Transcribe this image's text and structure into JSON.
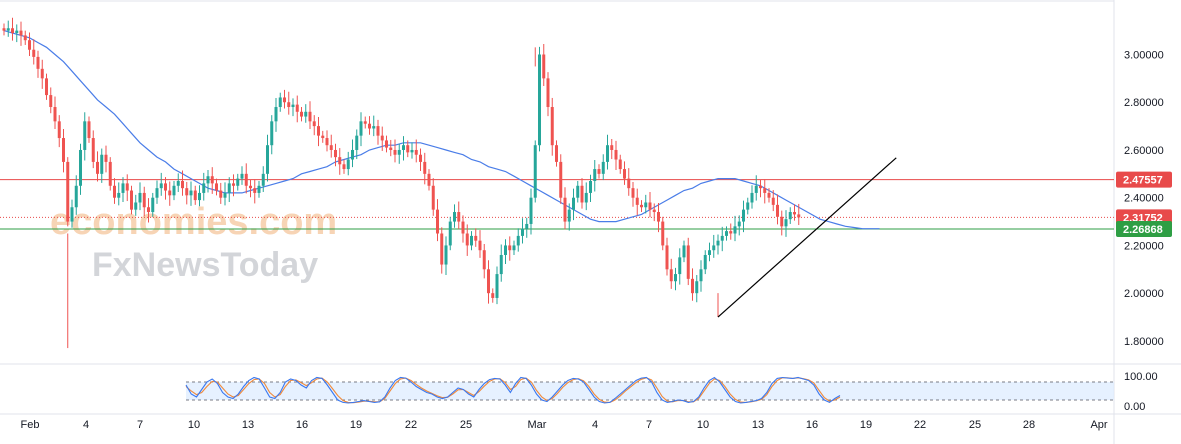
{
  "watermark": {
    "line1": "economies.com",
    "line2": "FxNewsToday"
  },
  "chart_data": {
    "type": "candlestick",
    "y_ticks": [
      "3.00000",
      "2.80000",
      "2.60000",
      "2.40000",
      "2.20000",
      "2.00000",
      "1.80000"
    ],
    "y_tick_values": [
      3.0,
      2.8,
      2.6,
      2.4,
      2.2,
      2.0,
      1.8
    ],
    "ylim": [
      1.72,
      3.22
    ],
    "x_ticks": [
      "Feb",
      "4",
      "7",
      "10",
      "13",
      "16",
      "19",
      "22",
      "25",
      "Mar",
      "4",
      "7",
      "10",
      "13",
      "16",
      "19",
      "22",
      "25",
      "28",
      "Apr"
    ],
    "horizontal_levels": [
      {
        "value": 2.47557,
        "label": "2.47557",
        "color": "#e84a4a",
        "style": "solid"
      },
      {
        "value": 2.31752,
        "label": "2.31752",
        "color": "#e84a4a",
        "style": "dotted"
      },
      {
        "value": 2.26868,
        "label": "2.26868",
        "color": "#2e9e44",
        "style": "solid"
      }
    ],
    "trendline": {
      "from": {
        "bar": 168,
        "price": 1.9
      },
      "to": {
        "bar": 197,
        "price": 2.45
      },
      "color": "#000000"
    },
    "colors": {
      "up": "#26a69a",
      "down": "#ef5350",
      "ma": "#4a7de8",
      "stoch_k": "#3a78f0",
      "stoch_d": "#f08a3a"
    },
    "closes": [
      3.1,
      3.11,
      3.09,
      3.1,
      3.08,
      3.06,
      3.02,
      2.99,
      2.94,
      2.9,
      2.83,
      2.78,
      2.72,
      2.65,
      2.55,
      2.3,
      2.36,
      2.45,
      2.6,
      2.72,
      2.65,
      2.55,
      2.5,
      2.58,
      2.55,
      2.45,
      2.4,
      2.42,
      2.46,
      2.43,
      2.35,
      2.38,
      2.42,
      2.36,
      2.34,
      2.4,
      2.44,
      2.46,
      2.43,
      2.41,
      2.45,
      2.47,
      2.44,
      2.41,
      2.43,
      2.39,
      2.42,
      2.46,
      2.49,
      2.46,
      2.43,
      2.4,
      2.42,
      2.46,
      2.45,
      2.48,
      2.5,
      2.45,
      2.44,
      2.42,
      2.45,
      2.5,
      2.62,
      2.72,
      2.78,
      2.82,
      2.8,
      2.78,
      2.79,
      2.76,
      2.74,
      2.76,
      2.72,
      2.7,
      2.66,
      2.65,
      2.62,
      2.6,
      2.57,
      2.54,
      2.52,
      2.56,
      2.6,
      2.66,
      2.72,
      2.71,
      2.69,
      2.7,
      2.66,
      2.64,
      2.61,
      2.6,
      2.58,
      2.6,
      2.62,
      2.59,
      2.6,
      2.58,
      2.55,
      2.5,
      2.45,
      2.35,
      2.25,
      2.12,
      2.2,
      2.3,
      2.34,
      2.3,
      2.25,
      2.2,
      2.24,
      2.22,
      2.18,
      2.1,
      2.0,
      1.98,
      2.08,
      2.16,
      2.2,
      2.18,
      2.2,
      2.24,
      2.27,
      2.29,
      2.4,
      2.62,
      3.0,
      2.9,
      2.78,
      2.62,
      2.55,
      2.4,
      2.3,
      2.35,
      2.4,
      2.45,
      2.38,
      2.42,
      2.47,
      2.52,
      2.5,
      2.55,
      2.62,
      2.6,
      2.56,
      2.52,
      2.48,
      2.44,
      2.4,
      2.37,
      2.36,
      2.38,
      2.35,
      2.34,
      2.3,
      2.2,
      2.1,
      2.05,
      2.08,
      2.15,
      2.2,
      2.06,
      2.0,
      2.05,
      2.1,
      2.16,
      2.18,
      2.2,
      2.22,
      2.24,
      2.26,
      2.25,
      2.28,
      2.3,
      2.35,
      2.38,
      2.42,
      2.45,
      2.44,
      2.42,
      2.4,
      2.37,
      2.32,
      2.28,
      2.31,
      2.34,
      2.33,
      2.31752
    ],
    "ma": [
      3.1,
      3.09,
      3.08,
      3.07,
      3.05,
      3.03,
      3.0,
      2.97,
      2.93,
      2.89,
      2.85,
      2.81,
      2.78,
      2.75,
      2.71,
      2.67,
      2.63,
      2.6,
      2.57,
      2.55,
      2.52,
      2.5,
      2.48,
      2.46,
      2.44,
      2.43,
      2.42,
      2.42,
      2.42,
      2.43,
      2.44,
      2.45,
      2.46,
      2.47,
      2.48,
      2.5,
      2.51,
      2.52,
      2.53,
      2.55,
      2.56,
      2.57,
      2.58,
      2.6,
      2.61,
      2.62,
      2.62,
      2.63,
      2.63,
      2.63,
      2.62,
      2.61,
      2.6,
      2.59,
      2.58,
      2.56,
      2.55,
      2.53,
      2.52,
      2.51,
      2.49,
      2.47,
      2.45,
      2.43,
      2.41,
      2.39,
      2.37,
      2.35,
      2.33,
      2.31,
      2.3,
      2.3,
      2.3,
      2.31,
      2.32,
      2.33,
      2.35,
      2.37,
      2.39,
      2.41,
      2.43,
      2.44,
      2.46,
      2.47,
      2.48,
      2.48,
      2.48,
      2.47,
      2.46,
      2.45,
      2.43,
      2.41,
      2.39,
      2.37,
      2.35,
      2.33,
      2.31,
      2.3,
      2.29,
      2.28,
      2.275,
      2.27,
      2.27,
      2.27
    ],
    "ma_start_bar": 0,
    "ma_step": 2,
    "stochastic": {
      "ticks": [
        "100.00",
        "0.00"
      ],
      "tick_values": [
        100,
        0
      ],
      "bands": [
        80,
        20
      ],
      "k": [
        70,
        40,
        30,
        55,
        80,
        90,
        75,
        45,
        30,
        25,
        40,
        65,
        85,
        95,
        90,
        60,
        30,
        25,
        45,
        80,
        90,
        85,
        70,
        60,
        85,
        95,
        92,
        70,
        45,
        20,
        12,
        10,
        12,
        15,
        18,
        15,
        12,
        14,
        30,
        60,
        85,
        95,
        93,
        80,
        65,
        55,
        45,
        40,
        30,
        25,
        30,
        45,
        60,
        55,
        40,
        30,
        55,
        75,
        88,
        92,
        90,
        70,
        45,
        75,
        95,
        92,
        70,
        40,
        20,
        15,
        30,
        50,
        70,
        85,
        92,
        90,
        80,
        55,
        30,
        15,
        10,
        12,
        25,
        40,
        55,
        70,
        85,
        93,
        95,
        80,
        45,
        20,
        12,
        15,
        20,
        18,
        12,
        15,
        30,
        60,
        85,
        95,
        80,
        55,
        30,
        15,
        10,
        12,
        15,
        18,
        25,
        45,
        75,
        92,
        95,
        93,
        92,
        95,
        90,
        85,
        70,
        40,
        20,
        12,
        25,
        35
      ],
      "d": [
        65,
        50,
        38,
        45,
        65,
        82,
        80,
        60,
        40,
        30,
        35,
        55,
        75,
        88,
        90,
        75,
        45,
        30,
        38,
        65,
        85,
        87,
        78,
        68,
        78,
        90,
        93,
        80,
        58,
        35,
        18,
        12,
        11,
        13,
        16,
        16,
        14,
        14,
        25,
        50,
        75,
        90,
        93,
        85,
        72,
        60,
        50,
        42,
        34,
        28,
        29,
        40,
        54,
        55,
        45,
        35,
        48,
        66,
        82,
        90,
        91,
        78,
        55,
        65,
        88,
        93,
        80,
        52,
        30,
        18,
        25,
        42,
        62,
        78,
        88,
        91,
        84,
        65,
        40,
        22,
        13,
        12,
        20,
        34,
        50,
        64,
        78,
        89,
        94,
        87,
        60,
        32,
        16,
        14,
        18,
        18,
        14,
        14,
        25,
        50,
        75,
        90,
        85,
        65,
        40,
        22,
        13,
        12,
        14,
        17,
        22,
        38,
        65,
        85,
        94,
        94,
        92,
        94,
        91,
        87,
        77,
        52,
        28,
        16,
        20,
        30
      ]
    }
  }
}
